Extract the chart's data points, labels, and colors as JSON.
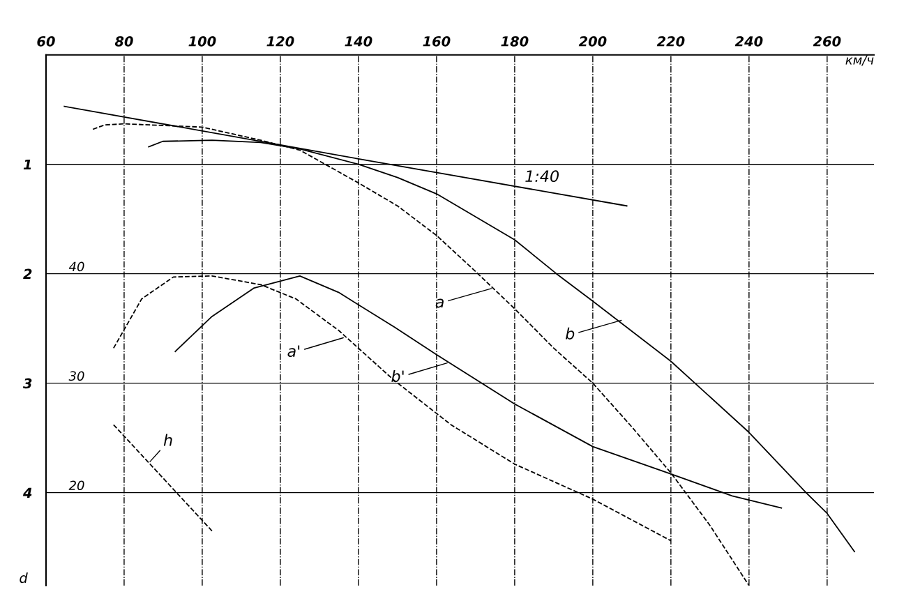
{
  "chart_data": {
    "type": "line",
    "xlabel": "км/ч",
    "ylabel": "d",
    "xlim": [
      60,
      272
    ],
    "xticks": [
      60,
      80,
      100,
      120,
      140,
      160,
      180,
      200,
      220,
      240,
      260
    ],
    "ylim": [
      4.85,
      0
    ],
    "yticks": [
      1,
      2,
      3,
      4
    ],
    "y2lim": [
      11.5,
      60
    ],
    "y2ticks": [
      40,
      30,
      20
    ],
    "grid": true,
    "legend": false,
    "marker": "none",
    "series": [
      {
        "color": "#000000",
        "line_style": "solid",
        "x": [
          64.7,
          140,
          208.7
        ],
        "values": [
          0.47,
          0.95,
          1.38
        ]
      },
      {
        "color": "#000000",
        "line_style": "dashed",
        "x": [
          72,
          75,
          80,
          100,
          115,
          125,
          140,
          150,
          160,
          170,
          180,
          190,
          200,
          210,
          220,
          230,
          240
        ],
        "values": [
          0.68,
          0.64,
          0.63,
          0.66,
          0.78,
          0.87,
          1.17,
          1.38,
          1.65,
          1.98,
          2.32,
          2.68,
          3.0,
          3.4,
          3.82,
          4.3,
          4.85
        ]
      },
      {
        "color": "#000000",
        "line_style": "solid",
        "x": [
          86.3,
          89.9,
          102.5,
          115,
          125,
          140,
          150,
          160,
          180,
          190.7,
          200,
          220,
          240,
          254.6,
          260,
          267
        ],
        "values": [
          0.84,
          0.79,
          0.78,
          0.8,
          0.86,
          1.0,
          1.12,
          1.27,
          1.69,
          2.0,
          2.25,
          2.8,
          3.45,
          4.0,
          4.19,
          4.54
        ]
      },
      {
        "color": "#000000",
        "line_style": "dashed",
        "x": [
          77.3,
          84.5,
          92.6,
          102.5,
          115,
          124,
          135,
          149,
          163.7,
          180,
          200,
          220
        ],
        "values": [
          2.68,
          2.23,
          2.03,
          2.02,
          2.1,
          2.23,
          2.52,
          2.97,
          3.38,
          3.74,
          4.06,
          4.44
        ]
      },
      {
        "color": "#000000",
        "line_style": "solid",
        "x": [
          93.1,
          102.5,
          113.3,
          125,
          134.9,
          149.3,
          160,
          180,
          200,
          220,
          235.7,
          248.3
        ],
        "values": [
          2.71,
          2.39,
          2.13,
          2.02,
          2.17,
          2.49,
          2.74,
          3.19,
          3.58,
          3.83,
          4.03,
          4.14
        ]
      },
      {
        "color": "#000000",
        "line_style": "dashed",
        "x": [
          77.3,
          102.5
        ],
        "values": [
          3.38,
          4.35
        ]
      }
    ],
    "annotations": [
      {
        "text": "1:40",
        "x": 190,
        "y": 1.26
      },
      {
        "text": "a",
        "x": 174.5,
        "y": 2.13
      },
      {
        "text": "b",
        "x": 207.8,
        "y": 2.42
      },
      {
        "text": "a'",
        "x": 136.6,
        "y": 2.58
      },
      {
        "text": "b'",
        "x": 163.2,
        "y": 2.81
      },
      {
        "text": "h",
        "x": 86.3,
        "y": 3.73
      }
    ]
  }
}
